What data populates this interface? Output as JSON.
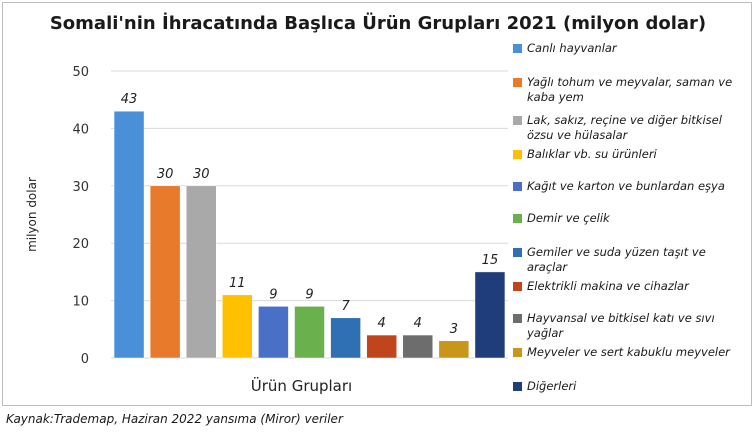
{
  "title": "Somali'nin İhracatında Başlıca Ürün Grupları 2021 (milyon dolar)",
  "source": "Kaynak:Trademap, Haziran 2022  yansıma (Miror) veriler",
  "chart_data": {
    "type": "bar",
    "title": "Somali'nin İhracatında Başlıca Ürün Grupları 2021 (milyon dolar)",
    "xlabel": "Ürün Grupları",
    "ylabel": "milyon dolar",
    "ylim": [
      0,
      50
    ],
    "yticks": [
      0,
      10,
      20,
      30,
      40,
      50
    ],
    "grid": true,
    "legend_position": "right",
    "series": [
      {
        "name": "Canlı hayvanlar",
        "value": 43,
        "color": "#4a90d9"
      },
      {
        "name": "Yağlı tohum ve meyvalar, saman ve kaba yem",
        "value": 30,
        "color": "#e87a2c"
      },
      {
        "name": "Lak, sakız, reçine ve diğer bitkisel özsu ve hülasalar",
        "value": 30,
        "color": "#a9a9a9"
      },
      {
        "name": "Balıklar vb. su ürünleri",
        "value": 11,
        "color": "#ffc000"
      },
      {
        "name": "Kağıt ve karton ve bunlardan eşya",
        "value": 9,
        "color": "#4a6fc7"
      },
      {
        "name": "Demir ve çelik",
        "value": 9,
        "color": "#6ab04c"
      },
      {
        "name": "Gemiler ve suda yüzen taşıt ve araçlar",
        "value": 7,
        "color": "#2f6fb3"
      },
      {
        "name": "Elektrikli makina ve cihazlar",
        "value": 4,
        "color": "#c0441c"
      },
      {
        "name": "Hayvansal ve bitkisel katı ve sıvı yağlar",
        "value": 4,
        "color": "#6d6d6d"
      },
      {
        "name": "Meyveler ve sert kabuklu meyveler",
        "value": 3,
        "color": "#c8961a"
      },
      {
        "name": "Diğerleri",
        "value": 15,
        "color": "#1f3d7a"
      }
    ]
  }
}
